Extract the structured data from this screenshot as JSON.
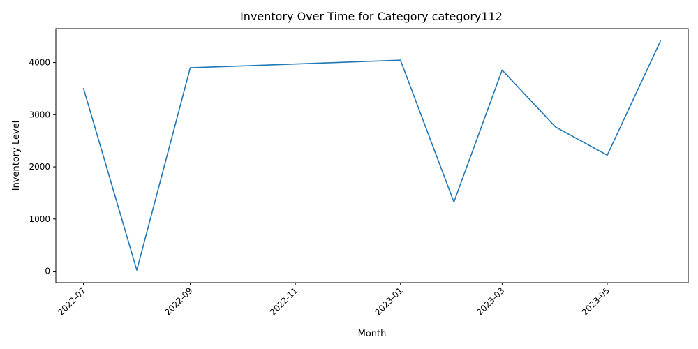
{
  "chart_data": {
    "type": "line",
    "title": "Inventory Over Time for Category category112",
    "xlabel": "Month",
    "ylabel": "Inventory Level",
    "x": [
      "2022-07-01",
      "2022-08-01",
      "2022-09-01",
      "2023-01-01",
      "2023-02-01",
      "2023-03-01",
      "2023-04-01",
      "2023-05-01",
      "2023-06-01"
    ],
    "series": [
      {
        "values": [
          3510,
          20,
          3900,
          4045,
          1325,
          3855,
          2765,
          2225,
          4420
        ],
        "color": "#1f77b4"
      }
    ],
    "xlim": [
      "2022-06-15",
      "2023-06-17"
    ],
    "ylim": [
      -220,
      4650
    ],
    "xticks": [
      "2022-07",
      "2022-09",
      "2022-11",
      "2023-01",
      "2023-03",
      "2023-05"
    ],
    "yticks": [
      0,
      1000,
      2000,
      3000,
      4000
    ],
    "grid": false,
    "legend": "none"
  }
}
